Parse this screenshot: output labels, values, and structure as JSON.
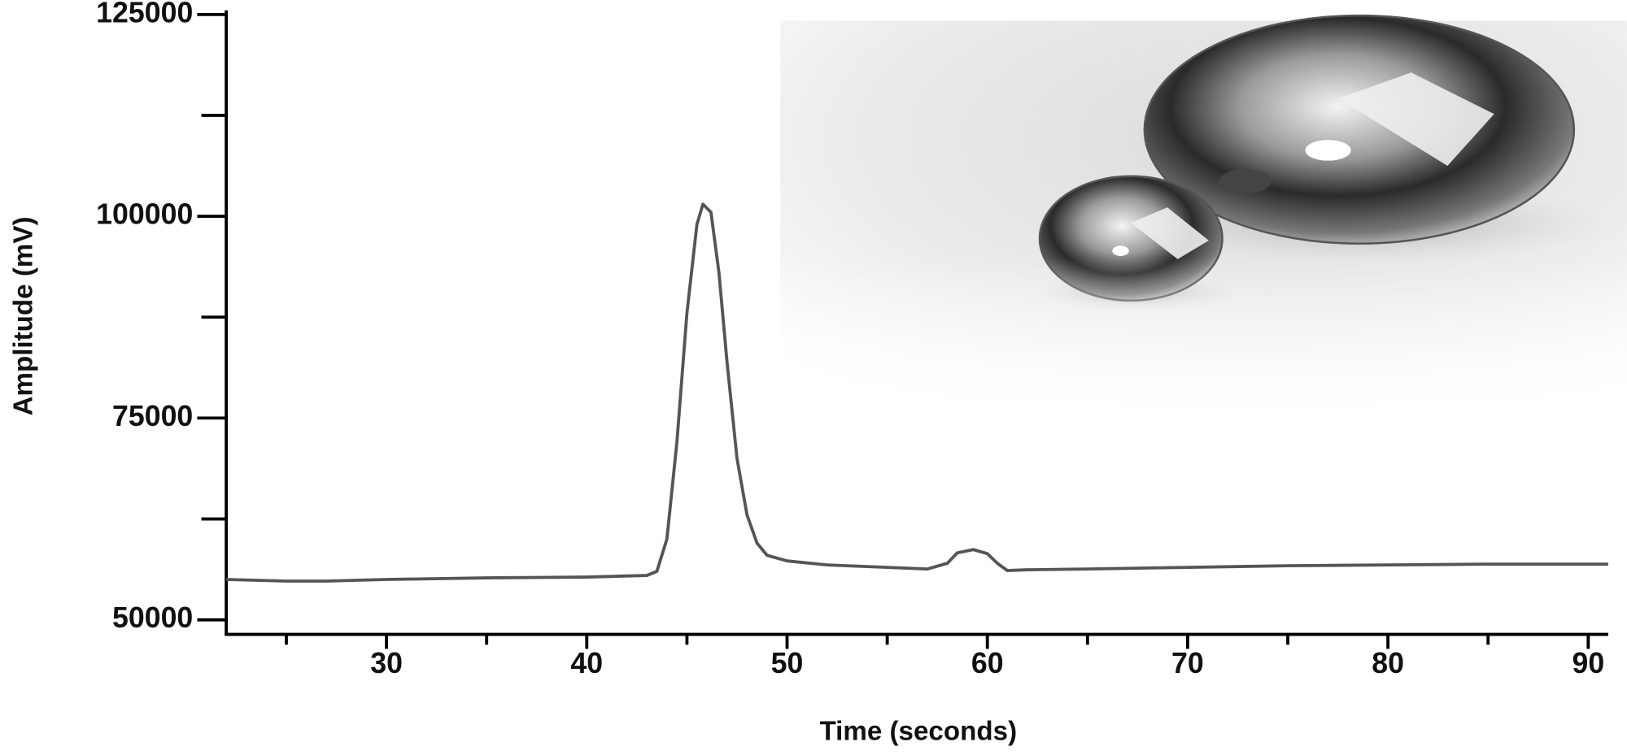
{
  "chart_data": {
    "type": "line",
    "x_label": "Time (seconds)",
    "y_label": "Amplitude (mV)",
    "xlim": [
      22,
      91
    ],
    "xticks": [
      30,
      40,
      50,
      60,
      70,
      80,
      90
    ],
    "xminorticks": [
      25,
      35,
      45,
      55,
      65,
      75,
      85
    ],
    "ylim": [
      48200,
      125000
    ],
    "yticks": [
      50000,
      75000,
      100000,
      125000
    ],
    "yminorticks": [
      62500,
      87500,
      112500
    ],
    "grid": false,
    "series": [
      {
        "color": "#555555",
        "x": [
          22,
          25,
          27,
          30,
          35,
          40,
          43,
          43.5,
          44,
          44.5,
          45,
          45.5,
          45.8,
          46.2,
          46.6,
          47,
          47.5,
          48,
          48.5,
          49,
          50,
          52,
          55,
          57,
          58,
          58.5,
          59.3,
          60,
          60.5,
          61,
          62,
          65,
          70,
          75,
          80,
          85,
          91
        ],
        "values": [
          55000,
          54800,
          54800,
          55000,
          55200,
          55300,
          55500,
          56000,
          60000,
          72000,
          88000,
          99000,
          101500,
          100500,
          93000,
          82000,
          70000,
          63000,
          59500,
          58000,
          57300,
          56800,
          56500,
          56300,
          57000,
          58300,
          58700,
          58200,
          57000,
          56100,
          56200,
          56300,
          56500,
          56700,
          56800,
          56900,
          56900
        ]
      }
    ]
  }
}
